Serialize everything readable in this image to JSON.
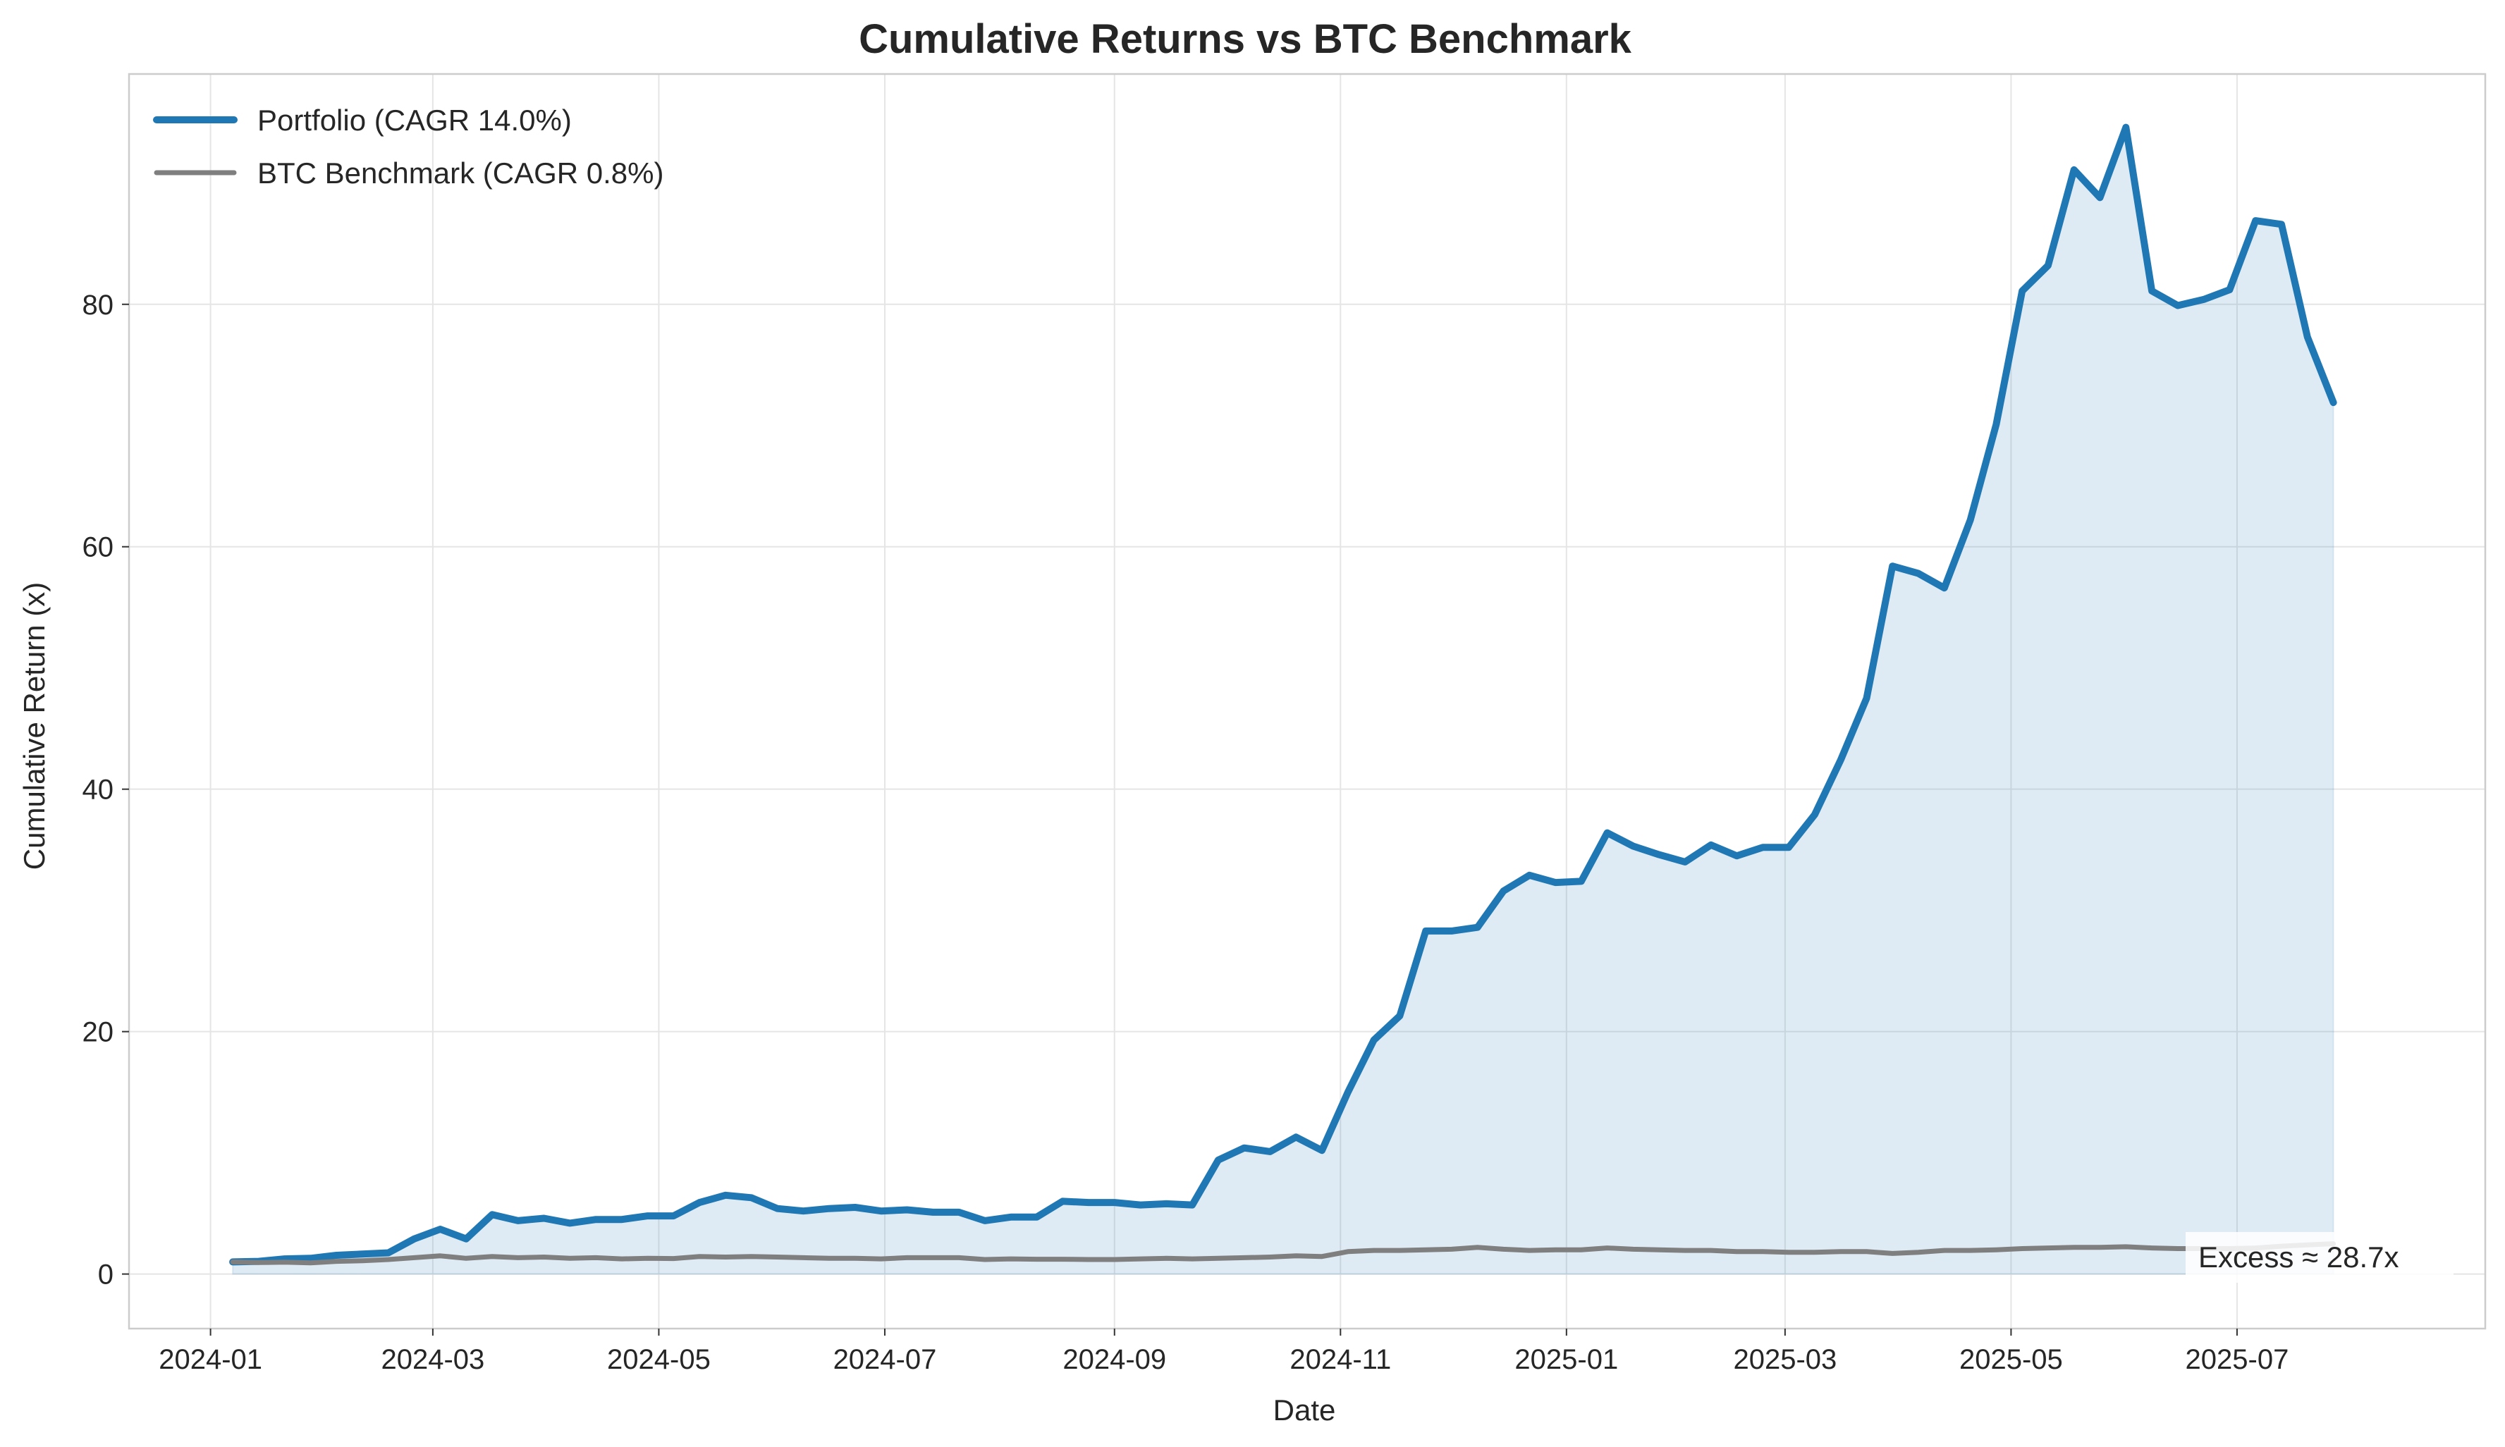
{
  "chart_data": {
    "type": "line",
    "title": "Cumulative Returns vs BTC Benchmark",
    "xlabel": "Date",
    "ylabel": "Cumulative Return (x)",
    "ylim": [
      -4.5,
      99
    ],
    "xlim": [
      "2023-12-10",
      "2025-09-06"
    ],
    "y_ticks": [
      0,
      20,
      40,
      60,
      80
    ],
    "x_ticks": [
      "2024-01-01",
      "2024-03-01",
      "2024-05-01",
      "2024-07-01",
      "2024-09-01",
      "2024-11-01",
      "2025-01-01",
      "2025-03-01",
      "2025-05-01",
      "2025-07-01"
    ],
    "x_tick_labels": [
      "2024-01",
      "2024-03",
      "2024-05",
      "2024-07",
      "2024-09",
      "2024-11",
      "2025-01",
      "2025-03",
      "2025-05",
      "2025-07"
    ],
    "grid": true,
    "legend_position": "top-left",
    "dates": [
      "2024-01-07",
      "2024-01-14",
      "2024-01-21",
      "2024-01-28",
      "2024-02-04",
      "2024-02-11",
      "2024-02-18",
      "2024-02-25",
      "2024-03-03",
      "2024-03-10",
      "2024-03-17",
      "2024-03-24",
      "2024-03-31",
      "2024-04-07",
      "2024-04-14",
      "2024-04-21",
      "2024-04-28",
      "2024-05-05",
      "2024-05-12",
      "2024-05-19",
      "2024-05-26",
      "2024-06-02",
      "2024-06-09",
      "2024-06-16",
      "2024-06-23",
      "2024-06-30",
      "2024-07-07",
      "2024-07-14",
      "2024-07-21",
      "2024-07-28",
      "2024-08-04",
      "2024-08-11",
      "2024-08-18",
      "2024-08-25",
      "2024-09-01",
      "2024-09-08",
      "2024-09-15",
      "2024-09-22",
      "2024-09-29",
      "2024-10-06",
      "2024-10-13",
      "2024-10-20",
      "2024-10-27",
      "2024-11-03",
      "2024-11-10",
      "2024-11-17",
      "2024-11-24",
      "2024-12-01",
      "2024-12-08",
      "2024-12-15",
      "2024-12-22",
      "2024-12-29",
      "2025-01-05",
      "2025-01-12",
      "2025-01-19",
      "2025-01-26",
      "2025-02-02",
      "2025-02-09",
      "2025-02-16",
      "2025-02-23",
      "2025-03-02",
      "2025-03-09",
      "2025-03-16",
      "2025-03-23",
      "2025-03-30",
      "2025-04-06",
      "2025-04-13",
      "2025-04-20",
      "2025-04-27",
      "2025-05-04",
      "2025-05-11",
      "2025-05-18",
      "2025-05-25",
      "2025-06-01",
      "2025-06-08",
      "2025-06-15",
      "2025-06-22",
      "2025-06-29",
      "2025-07-06",
      "2025-07-13",
      "2025-07-20",
      "2025-07-27"
    ],
    "series": [
      {
        "name": "Portfolio (CAGR 14.0%)",
        "color": "#1f77b4",
        "fill": true,
        "values": [
          1.0,
          1.05,
          1.25,
          1.3,
          1.55,
          1.65,
          1.75,
          2.9,
          3.7,
          2.9,
          4.9,
          4.4,
          4.6,
          4.2,
          4.5,
          4.5,
          4.8,
          4.8,
          5.9,
          6.5,
          6.3,
          5.4,
          5.2,
          5.4,
          5.5,
          5.2,
          5.3,
          5.1,
          5.1,
          4.4,
          4.7,
          4.7,
          6.0,
          5.9,
          5.9,
          5.7,
          5.8,
          5.7,
          9.4,
          10.4,
          10.1,
          11.3,
          10.2,
          15.0,
          19.3,
          21.3,
          28.3,
          28.3,
          28.6,
          31.6,
          32.9,
          32.3,
          32.4,
          36.4,
          35.3,
          34.6,
          34.0,
          35.4,
          34.5,
          35.2,
          35.2,
          37.9,
          42.4,
          47.5,
          58.4,
          57.8,
          56.6,
          62.2,
          70.1,
          81.1,
          83.2,
          91.1,
          88.8,
          94.6,
          81.1,
          79.9,
          80.4,
          81.2,
          86.9,
          86.6,
          77.3,
          71.9
        ]
      },
      {
        "name": "BTC Benchmark (CAGR 0.8%)",
        "color": "#7f7f7f",
        "fill": false,
        "values": [
          1.0,
          0.95,
          0.98,
          0.92,
          1.05,
          1.1,
          1.2,
          1.35,
          1.5,
          1.3,
          1.45,
          1.35,
          1.4,
          1.3,
          1.35,
          1.25,
          1.3,
          1.28,
          1.45,
          1.4,
          1.45,
          1.4,
          1.35,
          1.3,
          1.3,
          1.25,
          1.35,
          1.35,
          1.35,
          1.2,
          1.25,
          1.22,
          1.22,
          1.2,
          1.2,
          1.25,
          1.3,
          1.25,
          1.3,
          1.35,
          1.4,
          1.5,
          1.45,
          1.85,
          1.95,
          1.95,
          2.0,
          2.05,
          2.2,
          2.05,
          1.95,
          2.0,
          2.0,
          2.15,
          2.05,
          2.0,
          1.95,
          1.95,
          1.85,
          1.85,
          1.8,
          1.8,
          1.85,
          1.85,
          1.7,
          1.8,
          1.95,
          1.95,
          2.0,
          2.1,
          2.15,
          2.2,
          2.2,
          2.25,
          2.15,
          2.1,
          2.1,
          2.1,
          2.15,
          2.3,
          2.4,
          2.5
        ]
      }
    ],
    "annotation": "Excess ≈ 28.7x"
  }
}
